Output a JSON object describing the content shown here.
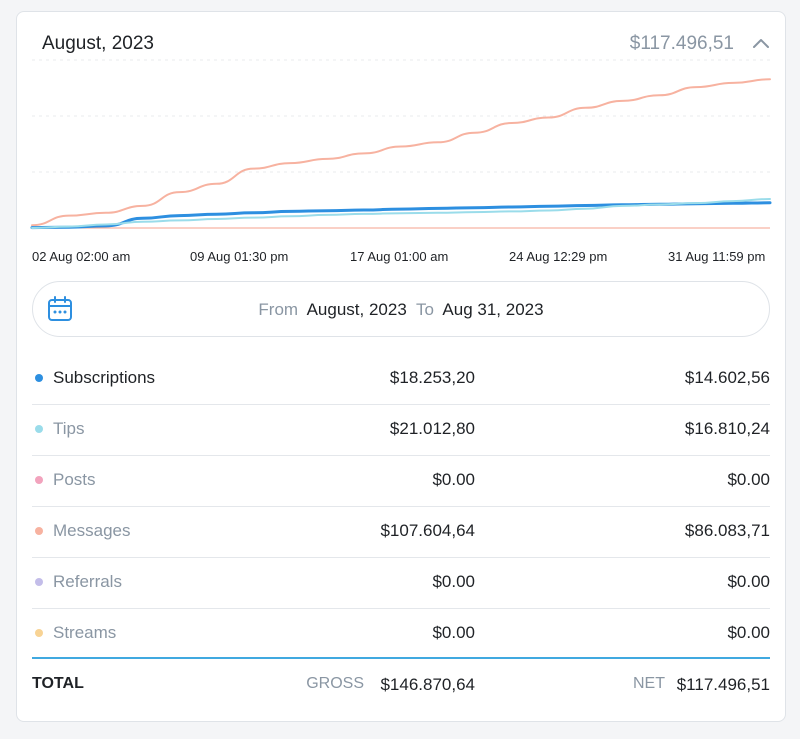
{
  "header": {
    "title": "August, 2023",
    "total": "$117.496,51"
  },
  "chart_data": {
    "type": "line",
    "title": "August, 2023",
    "x_tick_labels": [
      "02 Aug 02:00 am",
      "09 Aug 01:30 pm",
      "17 Aug 01:00 am",
      "24 Aug 12:29 pm",
      "31 Aug 11:59 pm"
    ],
    "x": [
      0,
      0.05,
      0.1,
      0.15,
      0.2,
      0.25,
      0.3,
      0.35,
      0.4,
      0.45,
      0.5,
      0.55,
      0.6,
      0.65,
      0.7,
      0.75,
      0.8,
      0.85,
      0.9,
      0.95,
      1
    ],
    "ylim": [
      0,
      110000
    ],
    "grid": true,
    "series": [
      {
        "name": "Messages",
        "color": "#f7b2a0",
        "width": 2,
        "values": [
          2000,
          9000,
          11000,
          16000,
          26000,
          32000,
          43000,
          47000,
          50000,
          54000,
          59000,
          62000,
          69000,
          76000,
          80000,
          87000,
          92000,
          96000,
          102000,
          105000,
          107605
        ]
      },
      {
        "name": "Subscriptions",
        "color": "#2d8fe0",
        "width": 3,
        "values": [
          300,
          600,
          1500,
          7000,
          9000,
          10000,
          11000,
          12000,
          12500,
          13000,
          13700,
          14200,
          14700,
          15200,
          15800,
          16300,
          16800,
          17200,
          17600,
          17900,
          18253
        ]
      },
      {
        "name": "Tips",
        "color": "#9adcea",
        "width": 2,
        "values": [
          0,
          1000,
          2500,
          4500,
          5500,
          6500,
          7500,
          8500,
          9500,
          10200,
          10700,
          11000,
          11500,
          12000,
          12700,
          14000,
          16000,
          17000,
          18000,
          19500,
          21013
        ]
      }
    ]
  },
  "date_range": {
    "from_label": "From",
    "from_value": "August, 2023",
    "to_label": "To",
    "to_value": "Aug 31, 2023"
  },
  "breakdown": [
    {
      "label": "Subscriptions",
      "gross": "$18.253,20",
      "net": "$14.602,56",
      "color": "#2d8fe0"
    },
    {
      "label": "Tips",
      "gross": "$21.012,80",
      "net": "$16.810,24",
      "color": "#9adcea"
    },
    {
      "label": "Posts",
      "gross": "$0.00",
      "net": "$0.00",
      "color": "#f2a3bd"
    },
    {
      "label": "Messages",
      "gross": "$107.604,64",
      "net": "$86.083,71",
      "color": "#f7b2a0"
    },
    {
      "label": "Referrals",
      "gross": "$0.00",
      "net": "$0.00",
      "color": "#c3bde9"
    },
    {
      "label": "Streams",
      "gross": "$0.00",
      "net": "$0.00",
      "color": "#f8d394"
    }
  ],
  "totals": {
    "label": "TOTAL",
    "gross_label": "GROSS",
    "gross": "$146.870,64",
    "net_label": "NET",
    "net": "$117.496,51"
  }
}
